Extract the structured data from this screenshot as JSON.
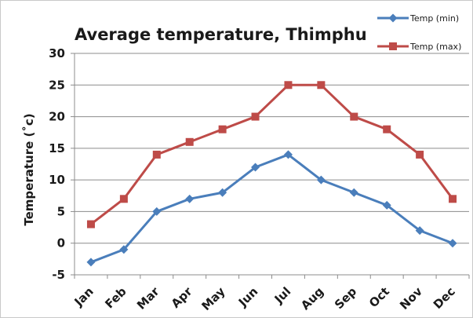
{
  "chart_data": {
    "type": "line",
    "title": "Average temperature, Thimphu",
    "ylabel": "Temperature (˚c)",
    "xlabel": "",
    "categories": [
      "Jan",
      "Feb",
      "Mar",
      "Apr",
      "May",
      "Jun",
      "Jul",
      "Aug",
      "Sep",
      "Oct",
      "Nov",
      "Dec"
    ],
    "ylim": [
      -5,
      30
    ],
    "yticks": [
      "-5",
      "0",
      "5",
      "10",
      "15",
      "20",
      "25",
      "30"
    ],
    "grid": true,
    "legend_position": "top-right",
    "series": [
      {
        "name": "Temp (min)",
        "color": "#4a7ebb",
        "marker": "diamond",
        "values": [
          -3,
          -1,
          5,
          7,
          8,
          12,
          14,
          10,
          8,
          6,
          2,
          0
        ]
      },
      {
        "name": "Temp (max)",
        "color": "#be4b48",
        "marker": "square",
        "values": [
          3,
          7,
          14,
          16,
          18,
          20,
          25,
          25,
          20,
          18,
          14,
          7
        ]
      }
    ]
  }
}
